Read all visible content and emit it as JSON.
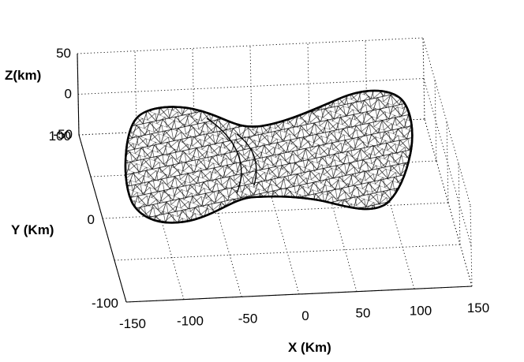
{
  "chart_data": {
    "type": "surface3d",
    "description_visible": "triangulated mesh surface of an elongated bilobed body",
    "xlabel": "X (Km)",
    "ylabel": "Y (Km)",
    "zlabel": "Z(km)",
    "x_ticks": [
      "-150",
      "-100",
      "-50",
      "0",
      "50",
      "100",
      "150"
    ],
    "y_ticks": [
      "-100",
      "0",
      "100"
    ],
    "z_ticks": [
      "-50",
      "0",
      "50"
    ],
    "xlim": [
      -150,
      150
    ],
    "ylim": [
      -100,
      100
    ],
    "zlim": [
      -50,
      50
    ],
    "grid": true,
    "mesh_color": "#000000",
    "background": "#ffffff"
  }
}
